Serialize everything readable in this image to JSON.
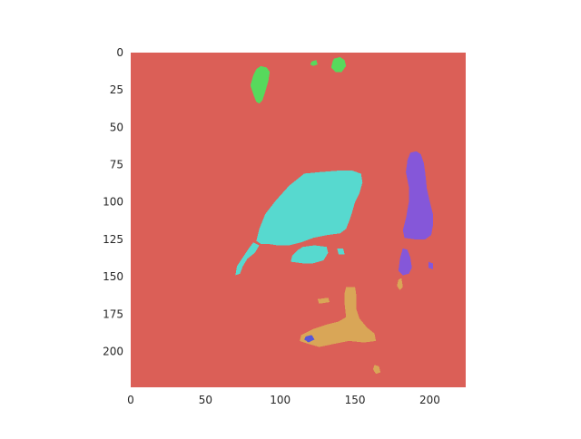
{
  "chart_data": {
    "type": "heatmap",
    "title": "",
    "xlabel": "",
    "ylabel": "",
    "xlim": [
      0,
      224
    ],
    "ylim": [
      224,
      0
    ],
    "x_ticks": [
      0,
      50,
      100,
      150,
      200
    ],
    "y_ticks": [
      0,
      25,
      50,
      75,
      100,
      125,
      150,
      175,
      200
    ],
    "grid": false,
    "legend": "none",
    "background_class": {
      "label": "background",
      "color": "#db5f57"
    },
    "regions": [
      {
        "class": 1,
        "color": "#57d95c",
        "polygon": [
          [
            87,
            9
          ],
          [
            91,
            10
          ],
          [
            93,
            13
          ],
          [
            92,
            19
          ],
          [
            90,
            26
          ],
          [
            88,
            32
          ],
          [
            86,
            34
          ],
          [
            84,
            33
          ],
          [
            82,
            28
          ],
          [
            80,
            22
          ],
          [
            82,
            15
          ],
          [
            84,
            11
          ]
        ]
      },
      {
        "class": 1,
        "color": "#57d95c",
        "polygon": [
          [
            136,
            4
          ],
          [
            140,
            3
          ],
          [
            143,
            5
          ],
          [
            144,
            9
          ],
          [
            141,
            13
          ],
          [
            137,
            13
          ],
          [
            134,
            10
          ],
          [
            135,
            6
          ]
        ]
      },
      {
        "class": 1,
        "color": "#57d95c",
        "polygon": [
          [
            121,
            6
          ],
          [
            124,
            5
          ],
          [
            125,
            8
          ],
          [
            122,
            9
          ],
          [
            120,
            8
          ]
        ]
      },
      {
        "class": 2,
        "color": "#57d9cf",
        "polygon": [
          [
            116,
            81
          ],
          [
            126,
            80
          ],
          [
            139,
            79
          ],
          [
            148,
            79
          ],
          [
            154,
            81
          ],
          [
            155,
            87
          ],
          [
            153,
            94
          ],
          [
            150,
            100
          ],
          [
            148,
            107
          ],
          [
            146,
            113
          ],
          [
            144,
            118
          ],
          [
            140,
            121
          ],
          [
            132,
            122
          ],
          [
            122,
            124
          ],
          [
            114,
            127
          ],
          [
            106,
            129
          ],
          [
            98,
            129
          ],
          [
            92,
            128
          ],
          [
            87,
            128
          ],
          [
            84,
            126
          ],
          [
            86,
            118
          ],
          [
            90,
            108
          ],
          [
            97,
            99
          ],
          [
            106,
            89
          ]
        ]
      },
      {
        "class": 2,
        "color": "#57d9cf",
        "polygon": [
          [
            82,
            127
          ],
          [
            86,
            129
          ],
          [
            83,
            134
          ],
          [
            78,
            138
          ],
          [
            75,
            143
          ],
          [
            73,
            148
          ],
          [
            70,
            149
          ],
          [
            71,
            143
          ],
          [
            75,
            137
          ],
          [
            79,
            131
          ]
        ]
      },
      {
        "class": 2,
        "color": "#57d9cf",
        "polygon": [
          [
            115,
            130
          ],
          [
            123,
            129
          ],
          [
            131,
            130
          ],
          [
            132,
            134
          ],
          [
            129,
            139
          ],
          [
            122,
            141
          ],
          [
            115,
            141
          ],
          [
            107,
            140
          ],
          [
            108,
            136
          ],
          [
            112,
            132
          ]
        ]
      },
      {
        "class": 2,
        "color": "#57d9cf",
        "polygon": [
          [
            138,
            131
          ],
          [
            142,
            131
          ],
          [
            143,
            135
          ],
          [
            139,
            135
          ]
        ]
      },
      {
        "class": 3,
        "color": "#8557d9",
        "polygon": [
          [
            187,
            67
          ],
          [
            191,
            66
          ],
          [
            194,
            68
          ],
          [
            196,
            74
          ],
          [
            197,
            81
          ],
          [
            198,
            91
          ],
          [
            200,
            100
          ],
          [
            202,
            108
          ],
          [
            202,
            116
          ],
          [
            201,
            122
          ],
          [
            197,
            125
          ],
          [
            190,
            125
          ],
          [
            183,
            124
          ],
          [
            182,
            119
          ],
          [
            184,
            111
          ],
          [
            186,
            100
          ],
          [
            186,
            90
          ],
          [
            184,
            80
          ],
          [
            185,
            72
          ]
        ]
      },
      {
        "class": 3,
        "color": "#8557d9",
        "polygon": [
          [
            182,
            131
          ],
          [
            185,
            132
          ],
          [
            187,
            137
          ],
          [
            188,
            144
          ],
          [
            186,
            148
          ],
          [
            182,
            149
          ],
          [
            179,
            146
          ],
          [
            180,
            138
          ]
        ]
      },
      {
        "class": 3,
        "color": "#8557d9",
        "polygon": [
          [
            199,
            140
          ],
          [
            202,
            141
          ],
          [
            202,
            145
          ],
          [
            199,
            144
          ]
        ]
      },
      {
        "class": 4,
        "color": "#d9a657",
        "polygon": [
          [
            144,
            157
          ],
          [
            150,
            157
          ],
          [
            151,
            163
          ],
          [
            151,
            172
          ],
          [
            153,
            178
          ],
          [
            158,
            184
          ],
          [
            163,
            188
          ],
          [
            164,
            193
          ],
          [
            156,
            194
          ],
          [
            146,
            193
          ],
          [
            136,
            195
          ],
          [
            126,
            197
          ],
          [
            119,
            195
          ],
          [
            113,
            193
          ],
          [
            114,
            189
          ],
          [
            122,
            185
          ],
          [
            131,
            182
          ],
          [
            139,
            180
          ],
          [
            144,
            177
          ],
          [
            143,
            168
          ],
          [
            143,
            161
          ]
        ]
      },
      {
        "class": 4,
        "color": "#d9a657",
        "polygon": [
          [
            125,
            165
          ],
          [
            132,
            164
          ],
          [
            133,
            167
          ],
          [
            126,
            168
          ]
        ]
      },
      {
        "class": 4,
        "color": "#d9a657",
        "polygon": [
          [
            163,
            209
          ],
          [
            166,
            210
          ],
          [
            167,
            214
          ],
          [
            164,
            215
          ],
          [
            162,
            212
          ]
        ]
      },
      {
        "class": 4,
        "color": "#d9a657",
        "polygon": [
          [
            179,
            152
          ],
          [
            181,
            151
          ],
          [
            182,
            157
          ],
          [
            180,
            159
          ],
          [
            178,
            156
          ]
        ]
      },
      {
        "class": 5,
        "color": "#5757d9",
        "polygon": [
          [
            117,
            190
          ],
          [
            121,
            189
          ],
          [
            123,
            192
          ],
          [
            119,
            194
          ],
          [
            116,
            192
          ]
        ]
      }
    ]
  }
}
